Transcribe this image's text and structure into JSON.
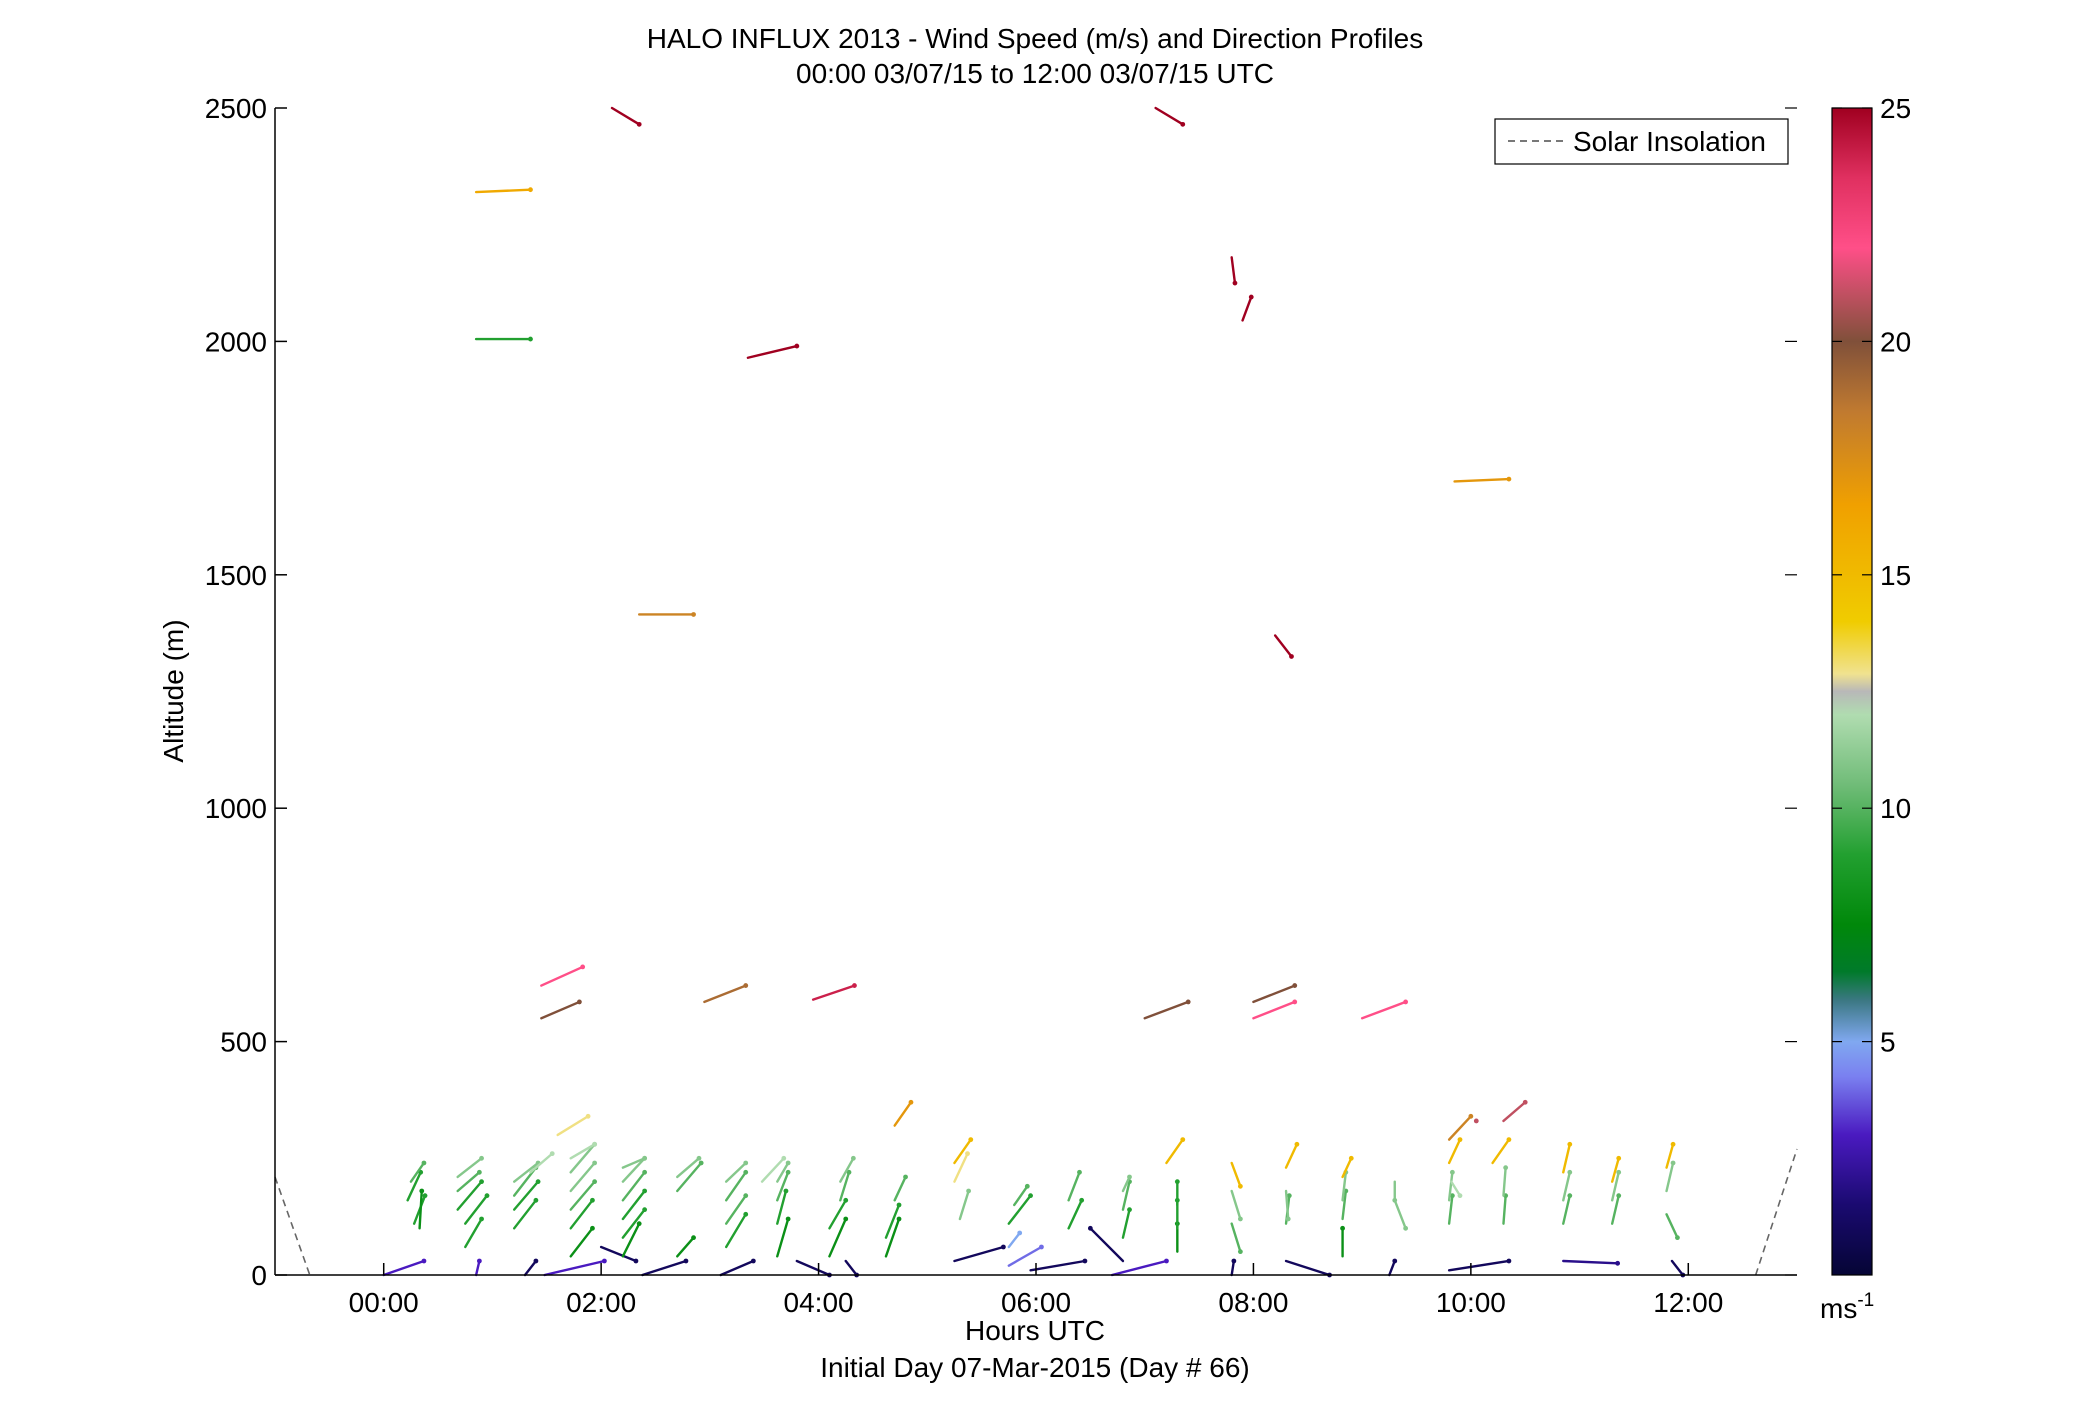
{
  "chart_data": {
    "type": "wind-barb",
    "title": "HALO INFLUX 2013 - Wind Speed (m/s) and Direction Profiles",
    "subtitle": "00:00 03/07/15 to 12:00 03/07/15  UTC",
    "xlabel": "Hours UTC",
    "xlabel2": "Initial Day 07-Mar-2015 (Day # 66)",
    "ylabel": "Altitude (m)",
    "xlim": [
      -1,
      13
    ],
    "ylim": [
      0,
      2500
    ],
    "xticks": [
      0,
      2,
      4,
      6,
      8,
      10,
      12
    ],
    "xtick_labels": [
      "00:00",
      "02:00",
      "04:00",
      "06:00",
      "08:00",
      "10:00",
      "12:00"
    ],
    "yticks": [
      0,
      500,
      1000,
      1500,
      2000,
      2500
    ],
    "ytick_labels": [
      "0",
      "500",
      "1000",
      "1500",
      "2000",
      "2500"
    ],
    "colorbar": {
      "range": [
        0,
        25
      ],
      "ticks": [
        5,
        10,
        15,
        20,
        25
      ],
      "tick_labels": [
        "5",
        "10",
        "15",
        "20",
        "25"
      ],
      "unit_label": "ms",
      "unit_exp": "-1"
    },
    "legend": {
      "entries": [
        "Solar Insolation"
      ],
      "position": "top-right",
      "line_style": "dashed"
    },
    "solar_insolation": [
      [
        -1.0,
        210
      ],
      [
        -0.68,
        0
      ]
    ],
    "solar_insolation_right": [
      [
        12.62,
        0
      ],
      [
        13.0,
        270
      ]
    ],
    "series": [
      {
        "t": 0.0,
        "alt": 0,
        "dt": 0.37,
        "dalt": 30,
        "speed": 3
      },
      {
        "t": 0.85,
        "alt": 0,
        "dt": 0.03,
        "dalt": 30,
        "speed": 3
      },
      {
        "t": 0.28,
        "alt": 110,
        "dt": 0.1,
        "dalt": 60,
        "speed": 9
      },
      {
        "t": 0.22,
        "alt": 160,
        "dt": 0.12,
        "dalt": 60,
        "speed": 9
      },
      {
        "t": 0.25,
        "alt": 200,
        "dt": 0.12,
        "dalt": 40,
        "speed": 10
      },
      {
        "t": 0.33,
        "alt": 100,
        "dt": 0.02,
        "dalt": 80,
        "speed": 8
      },
      {
        "t": 0.75,
        "alt": 60,
        "dt": 0.15,
        "dalt": 60,
        "speed": 9
      },
      {
        "t": 0.75,
        "alt": 110,
        "dt": 0.2,
        "dalt": 60,
        "speed": 9
      },
      {
        "t": 0.68,
        "alt": 140,
        "dt": 0.22,
        "dalt": 60,
        "speed": 9
      },
      {
        "t": 0.68,
        "alt": 180,
        "dt": 0.2,
        "dalt": 40,
        "speed": 10
      },
      {
        "t": 0.68,
        "alt": 210,
        "dt": 0.22,
        "dalt": 40,
        "speed": 11
      },
      {
        "t": 1.3,
        "alt": 0,
        "dt": 0.1,
        "dalt": 30,
        "speed": 1
      },
      {
        "t": 1.2,
        "alt": 100,
        "dt": 0.2,
        "dalt": 60,
        "speed": 9
      },
      {
        "t": 1.2,
        "alt": 140,
        "dt": 0.22,
        "dalt": 60,
        "speed": 9
      },
      {
        "t": 1.2,
        "alt": 170,
        "dt": 0.2,
        "dalt": 60,
        "speed": 10
      },
      {
        "t": 1.2,
        "alt": 200,
        "dt": 0.22,
        "dalt": 40,
        "speed": 11
      },
      {
        "t": 1.35,
        "alt": 220,
        "dt": 0.2,
        "dalt": 40,
        "speed": 12
      },
      {
        "t": 1.48,
        "alt": 0,
        "dt": 0.55,
        "dalt": 30,
        "speed": 3
      },
      {
        "t": 1.72,
        "alt": 40,
        "dt": 0.2,
        "dalt": 60,
        "speed": 8
      },
      {
        "t": 1.72,
        "alt": 100,
        "dt": 0.2,
        "dalt": 60,
        "speed": 9
      },
      {
        "t": 1.72,
        "alt": 140,
        "dt": 0.22,
        "dalt": 60,
        "speed": 10
      },
      {
        "t": 1.72,
        "alt": 180,
        "dt": 0.22,
        "dalt": 60,
        "speed": 11
      },
      {
        "t": 1.72,
        "alt": 220,
        "dt": 0.22,
        "dalt": 60,
        "speed": 11
      },
      {
        "t": 1.72,
        "alt": 250,
        "dt": 0.22,
        "dalt": 30,
        "speed": 12
      },
      {
        "t": 1.6,
        "alt": 300,
        "dt": 0.28,
        "dalt": 40,
        "speed": 13
      },
      {
        "t": 2.0,
        "alt": 60,
        "dt": 0.32,
        "dalt": -30,
        "speed": 1
      },
      {
        "t": 2.2,
        "alt": 40,
        "dt": 0.15,
        "dalt": 70,
        "speed": 8
      },
      {
        "t": 2.2,
        "alt": 80,
        "dt": 0.2,
        "dalt": 60,
        "speed": 9
      },
      {
        "t": 2.2,
        "alt": 120,
        "dt": 0.2,
        "dalt": 60,
        "speed": 9
      },
      {
        "t": 2.2,
        "alt": 160,
        "dt": 0.2,
        "dalt": 60,
        "speed": 10
      },
      {
        "t": 2.2,
        "alt": 200,
        "dt": 0.2,
        "dalt": 50,
        "speed": 11
      },
      {
        "t": 2.2,
        "alt": 230,
        "dt": 0.2,
        "dalt": 20,
        "speed": 11
      },
      {
        "t": 2.38,
        "alt": 0,
        "dt": 0.4,
        "dalt": 30,
        "speed": 1
      },
      {
        "t": 2.7,
        "alt": 40,
        "dt": 0.15,
        "dalt": 40,
        "speed": 8
      },
      {
        "t": 2.7,
        "alt": 180,
        "dt": 0.22,
        "dalt": 60,
        "speed": 10
      },
      {
        "t": 2.7,
        "alt": 210,
        "dt": 0.2,
        "dalt": 40,
        "speed": 11
      },
      {
        "t": 3.1,
        "alt": 0,
        "dt": 0.3,
        "dalt": 30,
        "speed": 1
      },
      {
        "t": 3.15,
        "alt": 60,
        "dt": 0.18,
        "dalt": 70,
        "speed": 9
      },
      {
        "t": 3.15,
        "alt": 110,
        "dt": 0.18,
        "dalt": 60,
        "speed": 10
      },
      {
        "t": 3.15,
        "alt": 160,
        "dt": 0.18,
        "dalt": 60,
        "speed": 10
      },
      {
        "t": 3.15,
        "alt": 200,
        "dt": 0.18,
        "dalt": 40,
        "speed": 11
      },
      {
        "t": 3.8,
        "alt": 30,
        "dt": 0.3,
        "dalt": -30,
        "speed": 1
      },
      {
        "t": 3.62,
        "alt": 40,
        "dt": 0.1,
        "dalt": 80,
        "speed": 8
      },
      {
        "t": 3.62,
        "alt": 110,
        "dt": 0.08,
        "dalt": 70,
        "speed": 9
      },
      {
        "t": 3.62,
        "alt": 160,
        "dt": 0.1,
        "dalt": 60,
        "speed": 10
      },
      {
        "t": 3.62,
        "alt": 200,
        "dt": 0.1,
        "dalt": 40,
        "speed": 11
      },
      {
        "t": 3.48,
        "alt": 200,
        "dt": 0.2,
        "dalt": 50,
        "speed": 12
      },
      {
        "t": 4.25,
        "alt": 30,
        "dt": 0.1,
        "dalt": -30,
        "speed": 1
      },
      {
        "t": 4.1,
        "alt": 40,
        "dt": 0.15,
        "dalt": 80,
        "speed": 8
      },
      {
        "t": 4.1,
        "alt": 100,
        "dt": 0.15,
        "dalt": 60,
        "speed": 9
      },
      {
        "t": 4.2,
        "alt": 160,
        "dt": 0.08,
        "dalt": 60,
        "speed": 10
      },
      {
        "t": 4.2,
        "alt": 200,
        "dt": 0.12,
        "dalt": 50,
        "speed": 11
      },
      {
        "t": 4.62,
        "alt": 40,
        "dt": 0.12,
        "dalt": 80,
        "speed": 8
      },
      {
        "t": 4.62,
        "alt": 80,
        "dt": 0.12,
        "dalt": 70,
        "speed": 9
      },
      {
        "t": 4.7,
        "alt": 160,
        "dt": 0.1,
        "dalt": 50,
        "speed": 10
      },
      {
        "t": 4.7,
        "alt": 320,
        "dt": 0.15,
        "dalt": 50,
        "speed": 17
      },
      {
        "t": 5.25,
        "alt": 30,
        "dt": 0.45,
        "dalt": 30,
        "speed": 1
      },
      {
        "t": 5.3,
        "alt": 120,
        "dt": 0.08,
        "dalt": 60,
        "speed": 11
      },
      {
        "t": 5.25,
        "alt": 200,
        "dt": 0.12,
        "dalt": 60,
        "speed": 13
      },
      {
        "t": 5.25,
        "alt": 240,
        "dt": 0.15,
        "dalt": 50,
        "speed": 15
      },
      {
        "t": 5.75,
        "alt": 20,
        "dt": 0.3,
        "dalt": 40,
        "speed": 4
      },
      {
        "t": 5.75,
        "alt": 60,
        "dt": 0.1,
        "dalt": 30,
        "speed": 5
      },
      {
        "t": 5.75,
        "alt": 110,
        "dt": 0.2,
        "dalt": 60,
        "speed": 9
      },
      {
        "t": 5.8,
        "alt": 150,
        "dt": 0.12,
        "dalt": 40,
        "speed": 10
      },
      {
        "t": 5.95,
        "alt": 10,
        "dt": 0.5,
        "dalt": 20,
        "speed": 1
      },
      {
        "t": 6.3,
        "alt": 100,
        "dt": 0.12,
        "dalt": 60,
        "speed": 9
      },
      {
        "t": 6.3,
        "alt": 160,
        "dt": 0.1,
        "dalt": 60,
        "speed": 10
      },
      {
        "t": 6.8,
        "alt": 30,
        "dt": -0.3,
        "dalt": 70,
        "speed": 1
      },
      {
        "t": 6.7,
        "alt": 0,
        "dt": 0.5,
        "dalt": 30,
        "speed": 3
      },
      {
        "t": 6.8,
        "alt": 80,
        "dt": 0.06,
        "dalt": 60,
        "speed": 9
      },
      {
        "t": 6.8,
        "alt": 140,
        "dt": 0.06,
        "dalt": 60,
        "speed": 10
      },
      {
        "t": 6.8,
        "alt": 180,
        "dt": 0.06,
        "dalt": 30,
        "speed": 11
      },
      {
        "t": 7.3,
        "alt": 50,
        "dt": 0.0,
        "dalt": 60,
        "speed": 8
      },
      {
        "t": 7.3,
        "alt": 100,
        "dt": 0.0,
        "dalt": 60,
        "speed": 9
      },
      {
        "t": 7.3,
        "alt": 150,
        "dt": 0.0,
        "dalt": 50,
        "speed": 9
      },
      {
        "t": 7.2,
        "alt": 240,
        "dt": 0.15,
        "dalt": 50,
        "speed": 15
      },
      {
        "t": 7.8,
        "alt": 0,
        "dt": 0.02,
        "dalt": 30,
        "speed": 1
      },
      {
        "t": 7.8,
        "alt": 110,
        "dt": 0.08,
        "dalt": -60,
        "speed": 10
      },
      {
        "t": 7.8,
        "alt": 180,
        "dt": 0.08,
        "dalt": -60,
        "speed": 11
      },
      {
        "t": 7.8,
        "alt": 240,
        "dt": 0.08,
        "dalt": -50,
        "speed": 15
      },
      {
        "t": 8.3,
        "alt": 30,
        "dt": 0.4,
        "dalt": -30,
        "speed": 1
      },
      {
        "t": 8.3,
        "alt": 110,
        "dt": 0.03,
        "dalt": 60,
        "speed": 10
      },
      {
        "t": 8.3,
        "alt": 180,
        "dt": 0.02,
        "dalt": -60,
        "speed": 11
      },
      {
        "t": 8.3,
        "alt": 230,
        "dt": 0.1,
        "dalt": 50,
        "speed": 15
      },
      {
        "t": 8.82,
        "alt": 40,
        "dt": 0.0,
        "dalt": 60,
        "speed": 8
      },
      {
        "t": 8.82,
        "alt": 120,
        "dt": 0.03,
        "dalt": 60,
        "speed": 10
      },
      {
        "t": 8.82,
        "alt": 160,
        "dt": 0.03,
        "dalt": 60,
        "speed": 11
      },
      {
        "t": 8.82,
        "alt": 210,
        "dt": 0.08,
        "dalt": 40,
        "speed": 15
      },
      {
        "t": 9.25,
        "alt": 0,
        "dt": 0.05,
        "dalt": 30,
        "speed": 1
      },
      {
        "t": 9.3,
        "alt": 160,
        "dt": 0.1,
        "dalt": -60,
        "speed": 11
      },
      {
        "t": 9.3,
        "alt": 200,
        "dt": 0.0,
        "dalt": -40,
        "speed": 11
      },
      {
        "t": 9.8,
        "alt": 10,
        "dt": 0.55,
        "dalt": 20,
        "speed": 1
      },
      {
        "t": 9.8,
        "alt": 110,
        "dt": 0.03,
        "dalt": 60,
        "speed": 10
      },
      {
        "t": 9.8,
        "alt": 160,
        "dt": 0.03,
        "dalt": 60,
        "speed": 11
      },
      {
        "t": 9.82,
        "alt": 200,
        "dt": 0.08,
        "dalt": -30,
        "speed": 12
      },
      {
        "t": 9.8,
        "alt": 240,
        "dt": 0.1,
        "dalt": 50,
        "speed": 15
      },
      {
        "t": 9.8,
        "alt": 290,
        "dt": 0.2,
        "dalt": 50,
        "speed": 18
      },
      {
        "t": 10.3,
        "alt": 110,
        "dt": 0.02,
        "dalt": 60,
        "speed": 10
      },
      {
        "t": 10.3,
        "alt": 170,
        "dt": 0.02,
        "dalt": 60,
        "speed": 11
      },
      {
        "t": 10.2,
        "alt": 240,
        "dt": 0.15,
        "dalt": 50,
        "speed": 15
      },
      {
        "t": 10.3,
        "alt": 330,
        "dt": 0.2,
        "dalt": 40,
        "speed": 21
      },
      {
        "t": 10.85,
        "alt": 30,
        "dt": 0.5,
        "dalt": -5,
        "speed": 2
      },
      {
        "t": 10.85,
        "alt": 110,
        "dt": 0.06,
        "dalt": 60,
        "speed": 10
      },
      {
        "t": 10.85,
        "alt": 160,
        "dt": 0.06,
        "dalt": 60,
        "speed": 11
      },
      {
        "t": 10.85,
        "alt": 220,
        "dt": 0.06,
        "dalt": 60,
        "speed": 15
      },
      {
        "t": 11.3,
        "alt": 110,
        "dt": 0.06,
        "dalt": 60,
        "speed": 10
      },
      {
        "t": 11.3,
        "alt": 160,
        "dt": 0.06,
        "dalt": 60,
        "speed": 11
      },
      {
        "t": 11.3,
        "alt": 200,
        "dt": 0.06,
        "dalt": 50,
        "speed": 15
      },
      {
        "t": 11.8,
        "alt": 130,
        "dt": 0.1,
        "dalt": -50,
        "speed": 10
      },
      {
        "t": 11.8,
        "alt": 180,
        "dt": 0.06,
        "dalt": 60,
        "speed": 11
      },
      {
        "t": 11.8,
        "alt": 230,
        "dt": 0.06,
        "dalt": 50,
        "speed": 15
      },
      {
        "t": 11.85,
        "alt": 30,
        "dt": 0.1,
        "dalt": -30,
        "speed": 1
      },
      {
        "t": 1.45,
        "alt": 620,
        "dt": 0.38,
        "dalt": 40,
        "speed": 22
      },
      {
        "t": 1.45,
        "alt": 550,
        "dt": 0.35,
        "dalt": 35,
        "speed": 20
      },
      {
        "t": 2.95,
        "alt": 585,
        "dt": 0.38,
        "dalt": 35,
        "speed": 19
      },
      {
        "t": 3.95,
        "alt": 590,
        "dt": 0.38,
        "dalt": 30,
        "speed": 24
      },
      {
        "t": 7.0,
        "alt": 550,
        "dt": 0.4,
        "dalt": 35,
        "speed": 20
      },
      {
        "t": 8.0,
        "alt": 585,
        "dt": 0.38,
        "dalt": 35,
        "speed": 20
      },
      {
        "t": 8.0,
        "alt": 550,
        "dt": 0.38,
        "dalt": 35,
        "speed": 22
      },
      {
        "t": 9.0,
        "alt": 550,
        "dt": 0.4,
        "dalt": 35,
        "speed": 22
      },
      {
        "t": 10.05,
        "alt": 330,
        "dt": 0.0,
        "dalt": 0,
        "speed": 21
      },
      {
        "t": 0.85,
        "alt": 2320,
        "dt": 0.5,
        "dalt": 5,
        "speed": 16
      },
      {
        "t": 0.85,
        "alt": 2005,
        "dt": 0.5,
        "dalt": 0,
        "speed": 9
      },
      {
        "t": 2.1,
        "alt": 2500,
        "dt": 0.25,
        "dalt": -35,
        "speed": 25
      },
      {
        "t": 3.35,
        "alt": 1965,
        "dt": 0.45,
        "dalt": 25,
        "speed": 25
      },
      {
        "t": 2.35,
        "alt": 1415,
        "dt": 0.5,
        "dalt": 0,
        "speed": 18
      },
      {
        "t": 7.1,
        "alt": 2500,
        "dt": 0.25,
        "dalt": -35,
        "speed": 25
      },
      {
        "t": 7.8,
        "alt": 2180,
        "dt": 0.03,
        "dalt": -55,
        "speed": 25
      },
      {
        "t": 7.9,
        "alt": 2045,
        "dt": 0.08,
        "dalt": 50,
        "speed": 25
      },
      {
        "t": 8.2,
        "alt": 1370,
        "dt": 0.15,
        "dalt": -45,
        "speed": 25
      },
      {
        "t": 9.85,
        "alt": 1700,
        "dt": 0.5,
        "dalt": 5,
        "speed": 17
      }
    ]
  }
}
